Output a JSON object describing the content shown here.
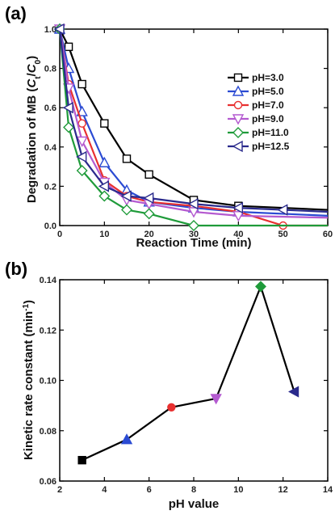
{
  "chart_data": [
    {
      "panel_label": "(a)",
      "type": "line",
      "xlabel": "Reaction Time (min)",
      "ylabel_parts": [
        "Degradation of MB (",
        "C",
        "t",
        "/",
        "C",
        "0",
        ")"
      ],
      "xlim": [
        0,
        60
      ],
      "ylim": [
        0,
        1.0
      ],
      "xticks": [
        "0",
        "10",
        "20",
        "30",
        "40",
        "50",
        "60"
      ],
      "yticks": [
        "0.0",
        "0.2",
        "0.4",
        "0.6",
        "0.8",
        "1.0"
      ],
      "legend_position": "top-right",
      "series": [
        {
          "name": "pH=3.0",
          "marker": "square",
          "color": "#000000",
          "x": [
            0,
            2,
            5,
            10,
            15,
            20,
            30,
            40,
            60
          ],
          "y": [
            1.0,
            0.91,
            0.72,
            0.52,
            0.34,
            0.26,
            0.13,
            0.1,
            0.08
          ]
        },
        {
          "name": "pH=5.0",
          "marker": "triangle-up",
          "color": "#2b4bd3",
          "x": [
            0,
            2,
            5,
            10,
            15,
            20,
            30,
            40,
            60
          ],
          "y": [
            1.0,
            0.8,
            0.58,
            0.32,
            0.18,
            0.12,
            0.09,
            0.07,
            0.05
          ]
        },
        {
          "name": "pH=7.0",
          "marker": "circle",
          "color": "#e83030",
          "x": [
            0,
            2,
            5,
            10,
            15,
            20,
            30,
            40,
            50,
            60
          ],
          "y": [
            1.0,
            0.72,
            0.52,
            0.23,
            0.15,
            0.12,
            0.1,
            0.07,
            0.0,
            0.0
          ]
        },
        {
          "name": "pH=9.0",
          "marker": "triangle-down",
          "color": "#b45ad0",
          "x": [
            0,
            2,
            5,
            10,
            15,
            20,
            30,
            40,
            60
          ],
          "y": [
            1.0,
            0.7,
            0.43,
            0.22,
            0.13,
            0.11,
            0.07,
            0.05,
            0.04
          ]
        },
        {
          "name": "pH=11.0",
          "marker": "diamond",
          "color": "#1f9b3a",
          "x": [
            0,
            2,
            5,
            10,
            15,
            20,
            30,
            60
          ],
          "y": [
            1.0,
            0.5,
            0.28,
            0.15,
            0.08,
            0.06,
            0.0,
            0.0
          ]
        },
        {
          "name": "pH=12.5",
          "marker": "triangle-left",
          "color": "#2a2a8c",
          "x": [
            0,
            2,
            5,
            10,
            15,
            20,
            30,
            40,
            50,
            60
          ],
          "y": [
            1.0,
            0.6,
            0.35,
            0.2,
            0.15,
            0.14,
            0.11,
            0.09,
            0.08,
            0.07
          ]
        }
      ]
    },
    {
      "panel_label": "(b)",
      "type": "line",
      "xlabel": "pH value",
      "ylabel": "Kinetic rate constant (min",
      "ylabel_sup": "-1",
      "ylabel_close": ")",
      "xlim": [
        2,
        14
      ],
      "ylim": [
        0.06,
        0.14
      ],
      "xticks": [
        "2",
        "4",
        "6",
        "8",
        "10",
        "12",
        "14"
      ],
      "yticks": [
        "0.06",
        "0.08",
        "0.10",
        "0.12",
        "0.14"
      ],
      "points": [
        {
          "x": 3.0,
          "y": 0.0683,
          "marker": "square",
          "color": "#000000"
        },
        {
          "x": 5.0,
          "y": 0.0765,
          "marker": "triangle-up",
          "color": "#2b4bd3"
        },
        {
          "x": 7.0,
          "y": 0.0893,
          "marker": "circle",
          "color": "#e83030"
        },
        {
          "x": 9.0,
          "y": 0.0928,
          "marker": "triangle-down",
          "color": "#b45ad0"
        },
        {
          "x": 11.0,
          "y": 0.1373,
          "marker": "diamond",
          "color": "#1f9b3a"
        },
        {
          "x": 12.5,
          "y": 0.0955,
          "marker": "triangle-left",
          "color": "#2a2a8c"
        }
      ]
    }
  ]
}
